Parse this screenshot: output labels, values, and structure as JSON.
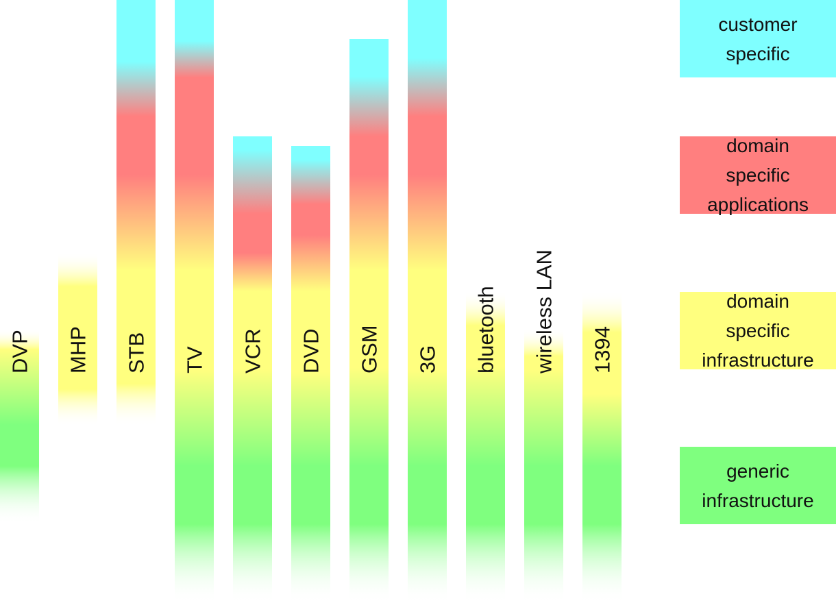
{
  "colors": {
    "customer_specific": "#7FFFFF",
    "domain_applications": "#FF7F7F",
    "domain_infrastructure": "#FFFF7F",
    "generic_infrastructure": "#7FFF7F",
    "text": "#111111"
  },
  "legend": [
    {
      "key": "customer_specific",
      "label": "customer\nspecific"
    },
    {
      "key": "domain_applications",
      "label": "domain\nspecific\napplications"
    },
    {
      "key": "domain_infrastructure",
      "label": "domain\nspecific\ninfrastructure"
    },
    {
      "key": "generic_infrastructure",
      "label": "generic\ninfrastructure"
    }
  ],
  "columns": [
    {
      "label": "DVP"
    },
    {
      "label": "MHP"
    },
    {
      "label": "STB"
    },
    {
      "label": "TV"
    },
    {
      "label": "VCR"
    },
    {
      "label": "DVD"
    },
    {
      "label": "GSM"
    },
    {
      "label": "3G"
    },
    {
      "label": "bluetooth"
    },
    {
      "label": "wireless LAN"
    },
    {
      "label": "1394"
    }
  ]
}
